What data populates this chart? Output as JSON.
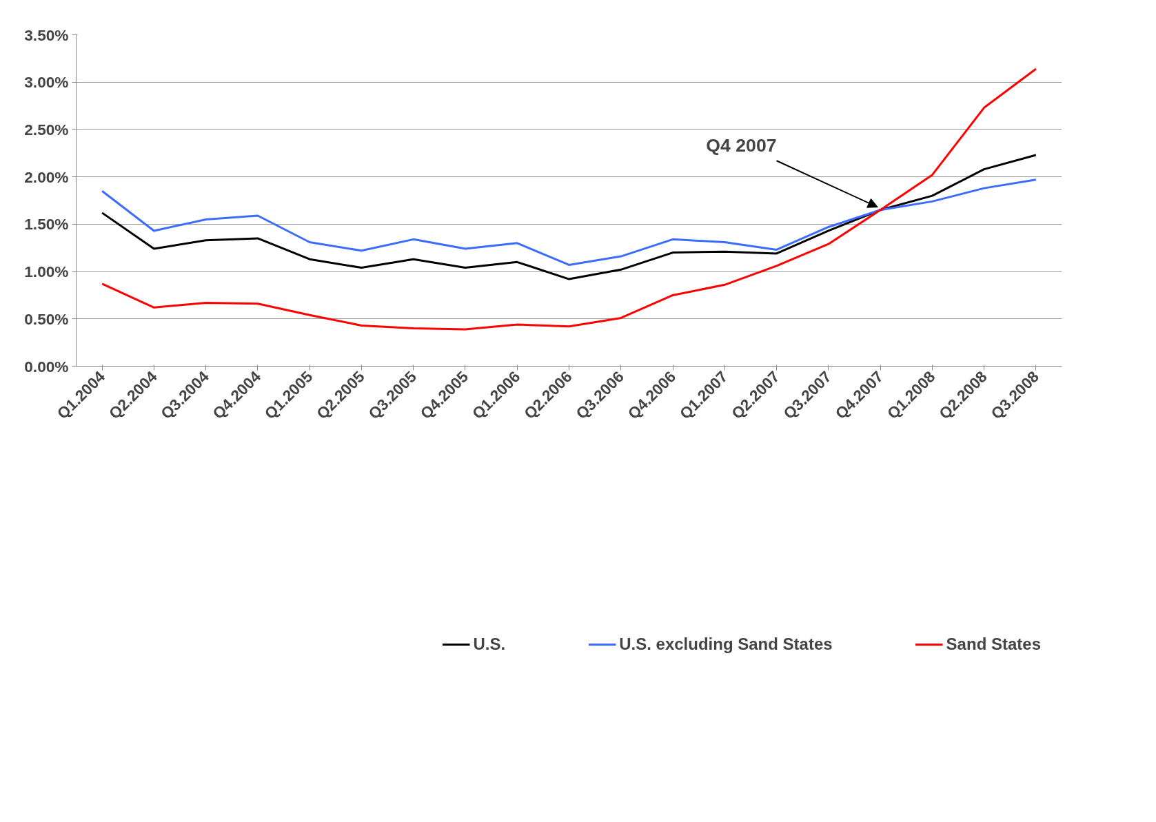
{
  "chart_data": {
    "type": "line",
    "categories": [
      "Q1.2004",
      "Q2.2004",
      "Q3.2004",
      "Q4.2004",
      "Q1.2005",
      "Q2.2005",
      "Q3.2005",
      "Q4.2005",
      "Q1.2006",
      "Q2.2006",
      "Q3.2006",
      "Q4.2006",
      "Q1.2007",
      "Q2.2007",
      "Q3.2007",
      "Q4.2007",
      "Q1.2008",
      "Q2.2008",
      "Q3.2008"
    ],
    "series": [
      {
        "name": "U.S.",
        "color": "#000000",
        "values": [
          1.62,
          1.24,
          1.33,
          1.35,
          1.13,
          1.04,
          1.13,
          1.04,
          1.1,
          0.92,
          1.02,
          1.2,
          1.21,
          1.19,
          1.43,
          1.65,
          1.8,
          2.08,
          2.23
        ]
      },
      {
        "name": "U.S. excluding Sand States",
        "color": "#3b6cff",
        "values": [
          1.85,
          1.43,
          1.55,
          1.59,
          1.31,
          1.22,
          1.34,
          1.24,
          1.3,
          1.07,
          1.16,
          1.34,
          1.31,
          1.23,
          1.47,
          1.65,
          1.74,
          1.88,
          1.97
        ]
      },
      {
        "name": "Sand States",
        "color": "#ff0000",
        "values": [
          0.87,
          0.62,
          0.67,
          0.66,
          0.54,
          0.43,
          0.4,
          0.39,
          0.44,
          0.42,
          0.51,
          0.75,
          0.86,
          1.06,
          1.29,
          1.65,
          2.02,
          2.73,
          3.14
        ]
      }
    ],
    "ylim": [
      0,
      3.5
    ],
    "yticks": [
      {
        "value": 0,
        "label": "0.00%"
      },
      {
        "value": 0.5,
        "label": "0.50%"
      },
      {
        "value": 1,
        "label": "1.00%"
      },
      {
        "value": 1.5,
        "label": "1.50%"
      },
      {
        "value": 2,
        "label": "2.00%"
      },
      {
        "value": 2.5,
        "label": "2.50%"
      },
      {
        "value": 3,
        "label": "3.00%"
      },
      {
        "value": 3.5,
        "label": "3.50%"
      }
    ],
    "grid": "y",
    "legend": "bottom",
    "marker": "none",
    "line_style": "solid",
    "annotations": [
      {
        "text": "Q4 2007",
        "x": "Q4.2007",
        "y": 1.65
      }
    ]
  }
}
